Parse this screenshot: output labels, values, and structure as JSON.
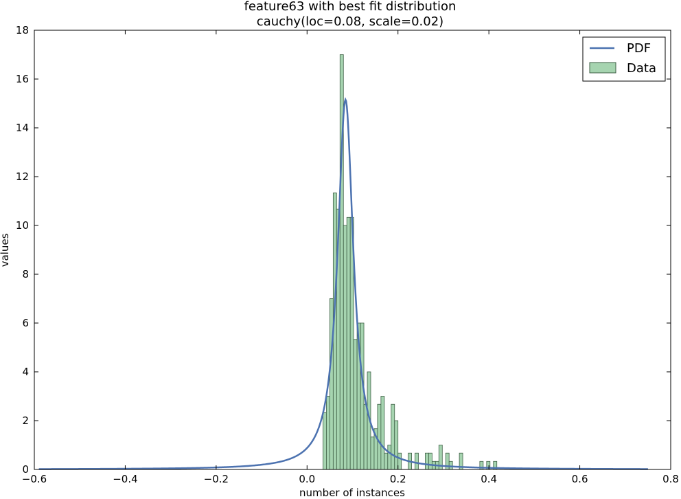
{
  "chart_data": {
    "type": "bar",
    "title": "feature63 with best fit distribution",
    "subtitle": "cauchy(loc=0.08, scale=0.02)",
    "xlabel": "number of instances",
    "ylabel": "values",
    "xlim": [
      -0.6,
      0.8
    ],
    "ylim": [
      0,
      18
    ],
    "xticks": [
      "-0.6",
      "-0.4",
      "-0.2",
      "0.0",
      "0.2",
      "0.4",
      "0.6",
      "0.8"
    ],
    "yticks": [
      "0",
      "2",
      "4",
      "6",
      "8",
      "10",
      "12",
      "14",
      "16",
      "18"
    ],
    "grid": false,
    "legend_position": "top-right",
    "legend": [
      {
        "label": "PDF",
        "kind": "line",
        "color": "#4c72b0"
      },
      {
        "label": "Data",
        "kind": "patch",
        "color": "#a6d4b0"
      }
    ],
    "histogram": {
      "name": "Data",
      "color": "#a6d4b0",
      "edge_color": "#3d5e44",
      "bin_width": 0.0075,
      "bins": [
        {
          "x": 0.035,
          "value": 2.33
        },
        {
          "x": 0.0425,
          "value": 3.0
        },
        {
          "x": 0.05,
          "value": 7.0
        },
        {
          "x": 0.0575,
          "value": 11.33
        },
        {
          "x": 0.065,
          "value": 10.67
        },
        {
          "x": 0.0725,
          "value": 17.0
        },
        {
          "x": 0.08,
          "value": 10.0
        },
        {
          "x": 0.0875,
          "value": 10.33
        },
        {
          "x": 0.095,
          "value": 10.33
        },
        {
          "x": 0.1025,
          "value": 5.33
        },
        {
          "x": 0.11,
          "value": 6.0
        },
        {
          "x": 0.1175,
          "value": 6.0
        },
        {
          "x": 0.125,
          "value": 2.67
        },
        {
          "x": 0.1325,
          "value": 4.0
        },
        {
          "x": 0.14,
          "value": 1.33
        },
        {
          "x": 0.1475,
          "value": 1.67
        },
        {
          "x": 0.155,
          "value": 2.67
        },
        {
          "x": 0.1625,
          "value": 3.0
        },
        {
          "x": 0.17,
          "value": 0.67
        },
        {
          "x": 0.1775,
          "value": 1.0
        },
        {
          "x": 0.185,
          "value": 2.67
        },
        {
          "x": 0.1925,
          "value": 2.0
        },
        {
          "x": 0.2,
          "value": 0.67
        },
        {
          "x": 0.2225,
          "value": 0.67
        },
        {
          "x": 0.2375,
          "value": 0.67
        },
        {
          "x": 0.26,
          "value": 0.67
        },
        {
          "x": 0.2675,
          "value": 0.67
        },
        {
          "x": 0.275,
          "value": 0.33
        },
        {
          "x": 0.2825,
          "value": 0.33
        },
        {
          "x": 0.29,
          "value": 1.0
        },
        {
          "x": 0.305,
          "value": 0.67
        },
        {
          "x": 0.3125,
          "value": 0.33
        },
        {
          "x": 0.335,
          "value": 0.67
        },
        {
          "x": 0.38,
          "value": 0.33
        },
        {
          "x": 0.395,
          "value": 0.33
        },
        {
          "x": 0.41,
          "value": 0.33
        }
      ]
    },
    "curve": {
      "name": "PDF",
      "color": "#4c72b0",
      "distribution": "cauchy",
      "loc": 0.0846,
      "scale": 0.021,
      "x_range": [
        -0.59,
        0.75
      ]
    }
  }
}
